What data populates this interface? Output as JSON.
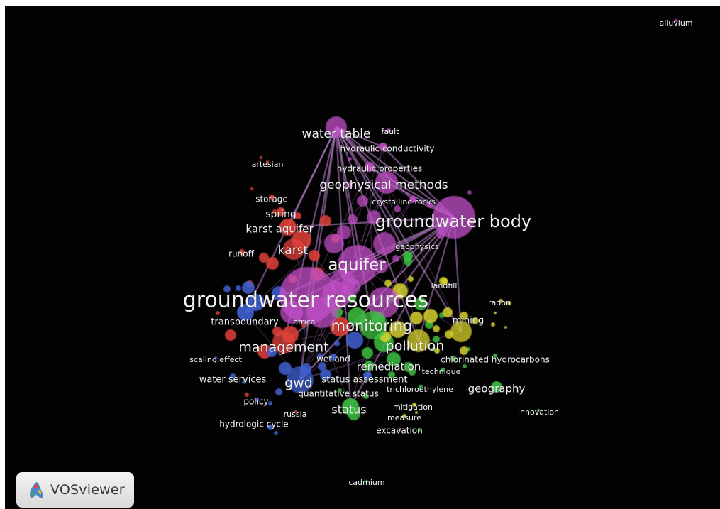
{
  "app": {
    "logo_text": "VOSviewer"
  },
  "colors": {
    "background": "#020202",
    "cluster_red": "#e2403a",
    "cluster_green": "#3cc040",
    "cluster_blue": "#3f62d4",
    "cluster_yellow": "#d6d12e",
    "cluster_purple": "#c24fc8",
    "link": "#b77fc9"
  },
  "network": {
    "labels": [
      {
        "text": "alluvium",
        "cluster": "purple"
      },
      {
        "text": "water table",
        "cluster": "purple"
      },
      {
        "text": "fault",
        "cluster": "purple"
      },
      {
        "text": "hydraulic conductivity",
        "cluster": "purple"
      },
      {
        "text": "artesian",
        "cluster": "red"
      },
      {
        "text": "hydraulic properties",
        "cluster": "purple"
      },
      {
        "text": "geophysical methods",
        "cluster": "purple"
      },
      {
        "text": "storage",
        "cluster": "red"
      },
      {
        "text": "crystalline rocks",
        "cluster": "purple"
      },
      {
        "text": "spring",
        "cluster": "red"
      },
      {
        "text": "groundwater body",
        "cluster": "purple"
      },
      {
        "text": "karst aquifer",
        "cluster": "red"
      },
      {
        "text": "karst",
        "cluster": "red"
      },
      {
        "text": "geophysics",
        "cluster": "green"
      },
      {
        "text": "runoff",
        "cluster": "red"
      },
      {
        "text": "aquifer",
        "cluster": "purple"
      },
      {
        "text": "landfill",
        "cluster": "yellow"
      },
      {
        "text": "groundwater resources",
        "cluster": "purple"
      },
      {
        "text": "radon",
        "cluster": "yellow"
      },
      {
        "text": "transboundary",
        "cluster": "blue"
      },
      {
        "text": "africa",
        "cluster": "red"
      },
      {
        "text": "monitoring",
        "cluster": "green"
      },
      {
        "text": "mining",
        "cluster": "yellow"
      },
      {
        "text": "management",
        "cluster": "red"
      },
      {
        "text": "pollution",
        "cluster": "yellow"
      },
      {
        "text": "scaling effect",
        "cluster": "blue"
      },
      {
        "text": "wetland",
        "cluster": "blue"
      },
      {
        "text": "chlorinated hydrocarbons",
        "cluster": "green"
      },
      {
        "text": "remediation",
        "cluster": "green"
      },
      {
        "text": "technique",
        "cluster": "green"
      },
      {
        "text": "water services",
        "cluster": "blue"
      },
      {
        "text": "gwd",
        "cluster": "blue"
      },
      {
        "text": "status assessment",
        "cluster": "blue"
      },
      {
        "text": "trichloroethylene",
        "cluster": "green"
      },
      {
        "text": "geography",
        "cluster": "green"
      },
      {
        "text": "quantitative status",
        "cluster": "green"
      },
      {
        "text": "policy",
        "cluster": "blue"
      },
      {
        "text": "status",
        "cluster": "green"
      },
      {
        "text": "mitigation",
        "cluster": "yellow"
      },
      {
        "text": "innovation",
        "cluster": "green"
      },
      {
        "text": "russia",
        "cluster": "red"
      },
      {
        "text": "measure",
        "cluster": "yellow"
      },
      {
        "text": "hydrologic cycle",
        "cluster": "blue"
      },
      {
        "text": "excavation",
        "cluster": "red"
      },
      {
        "text": "cadmium",
        "cluster": "green"
      }
    ]
  }
}
